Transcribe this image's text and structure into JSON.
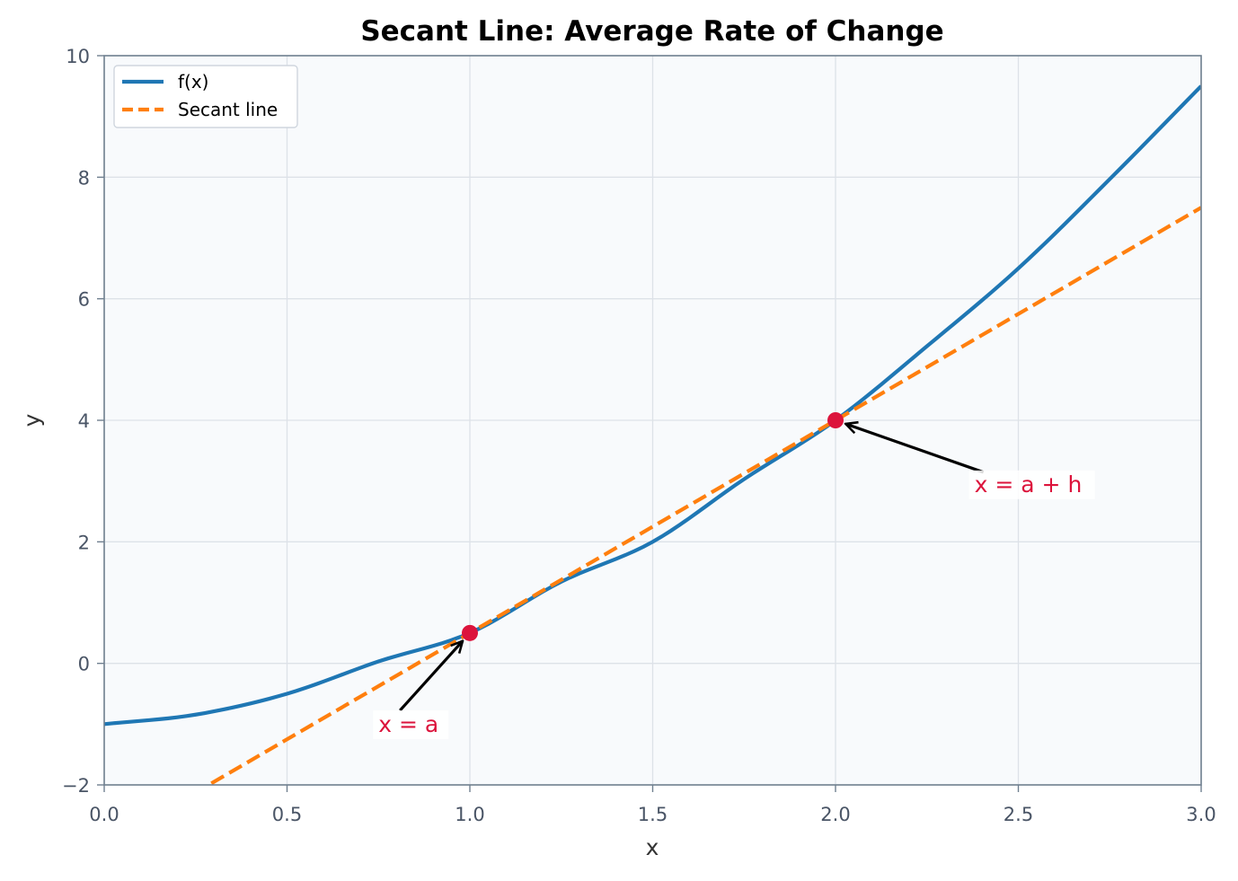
{
  "chart_data": {
    "type": "line",
    "title": "Secant Line: Average Rate of Change",
    "xlabel": "x",
    "ylabel": "y",
    "xlim": [
      0,
      3
    ],
    "ylim": [
      -2,
      10
    ],
    "x_ticks": [
      "0.0",
      "0.5",
      "1.0",
      "1.5",
      "2.0",
      "2.5",
      "3.0"
    ],
    "y_ticks": [
      "−2",
      "0",
      "2",
      "4",
      "6",
      "8",
      "10"
    ],
    "grid": true,
    "legend_position": "top-left",
    "series": [
      {
        "name": "f(x)",
        "style": "solid",
        "color": "#1f77b4",
        "x": [
          0,
          0.25,
          0.5,
          0.75,
          1.0,
          1.25,
          1.5,
          1.75,
          2.0,
          2.25,
          2.5,
          2.75,
          3.0
        ],
        "y": [
          -1,
          -0.84375,
          -0.5,
          0.03125,
          0.5,
          1.34375,
          2.0,
          3.03125,
          4.0,
          5.21875,
          6.5,
          7.96875,
          9.5
        ]
      },
      {
        "name": "Secant line",
        "style": "dashed",
        "color": "#ff7f0e",
        "x": [
          0,
          3
        ],
        "y": [
          -3,
          7.5
        ]
      }
    ],
    "points": [
      {
        "x": 1.0,
        "y": 0.5,
        "color": "#dc143c"
      },
      {
        "x": 2.0,
        "y": 4.0,
        "color": "#dc143c"
      }
    ],
    "annotations": [
      {
        "text": "x = a",
        "target_x": 1.0,
        "target_y": 0.5,
        "text_x": 0.75,
        "text_y": -1.1,
        "color": "#dc143c"
      },
      {
        "text": "x = a + h",
        "target_x": 2.0,
        "target_y": 4.0,
        "text_x": 2.38,
        "text_y": 2.85,
        "color": "#dc143c"
      }
    ]
  }
}
